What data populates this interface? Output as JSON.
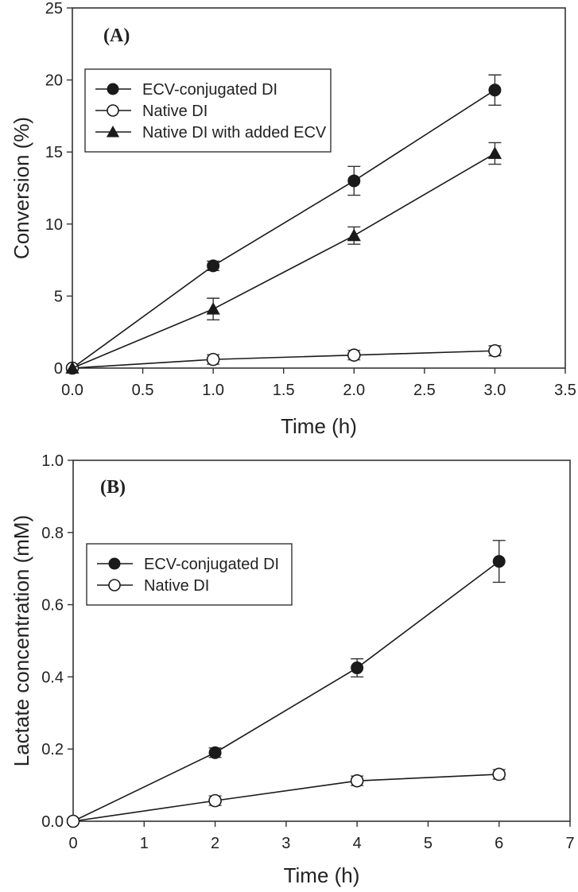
{
  "chart_data": [
    {
      "type": "line",
      "panel_label": "(A)",
      "title": "",
      "xlabel": "Time (h)",
      "ylabel": "Conversion (%)",
      "xlim": [
        0,
        3.5
      ],
      "ylim": [
        0,
        25
      ],
      "xticks": [
        "0.0",
        "0.5",
        "1.0",
        "1.5",
        "2.0",
        "2.5",
        "3.0",
        "3.5"
      ],
      "yticks": [
        "0",
        "5",
        "10",
        "15",
        "20",
        "25"
      ],
      "grid": false,
      "legend_position": "upper left",
      "x": [
        0,
        1,
        2,
        3
      ],
      "series": [
        {
          "name": "ECV-conjugated DI",
          "marker": "filled-circle",
          "values": [
            0,
            7.1,
            13.0,
            19.3
          ],
          "errors": [
            0,
            0.15,
            1.0,
            1.05
          ]
        },
        {
          "name": "Native DI",
          "marker": "open-circle",
          "values": [
            0,
            0.6,
            0.9,
            1.2
          ],
          "errors": [
            0,
            0.1,
            0.1,
            0.35
          ]
        },
        {
          "name": "Native DI with added ECV",
          "marker": "filled-triangle",
          "values": [
            0,
            4.1,
            9.2,
            14.9
          ],
          "errors": [
            0,
            0.75,
            0.6,
            0.75
          ]
        }
      ]
    },
    {
      "type": "line",
      "panel_label": "(B)",
      "title": "",
      "xlabel": "Time (h)",
      "ylabel": "Lactate concentration (mM)",
      "xlim": [
        0,
        7
      ],
      "ylim": [
        0,
        1.0
      ],
      "xticks": [
        "0",
        "1",
        "2",
        "3",
        "4",
        "5",
        "6",
        "7"
      ],
      "yticks": [
        "0.0",
        "0.2",
        "0.4",
        "0.6",
        "0.8",
        "1.0"
      ],
      "grid": false,
      "legend_position": "upper left",
      "x": [
        0,
        2,
        4,
        6
      ],
      "series": [
        {
          "name": "ECV-conjugated DI",
          "marker": "filled-circle",
          "values": [
            0,
            0.19,
            0.425,
            0.72
          ],
          "errors": [
            0,
            0.008,
            0.025,
            0.058
          ]
        },
        {
          "name": "Native DI",
          "marker": "open-circle",
          "values": [
            0,
            0.057,
            0.112,
            0.13
          ],
          "errors": [
            0,
            0.004,
            0.012,
            0.01
          ]
        }
      ]
    }
  ]
}
